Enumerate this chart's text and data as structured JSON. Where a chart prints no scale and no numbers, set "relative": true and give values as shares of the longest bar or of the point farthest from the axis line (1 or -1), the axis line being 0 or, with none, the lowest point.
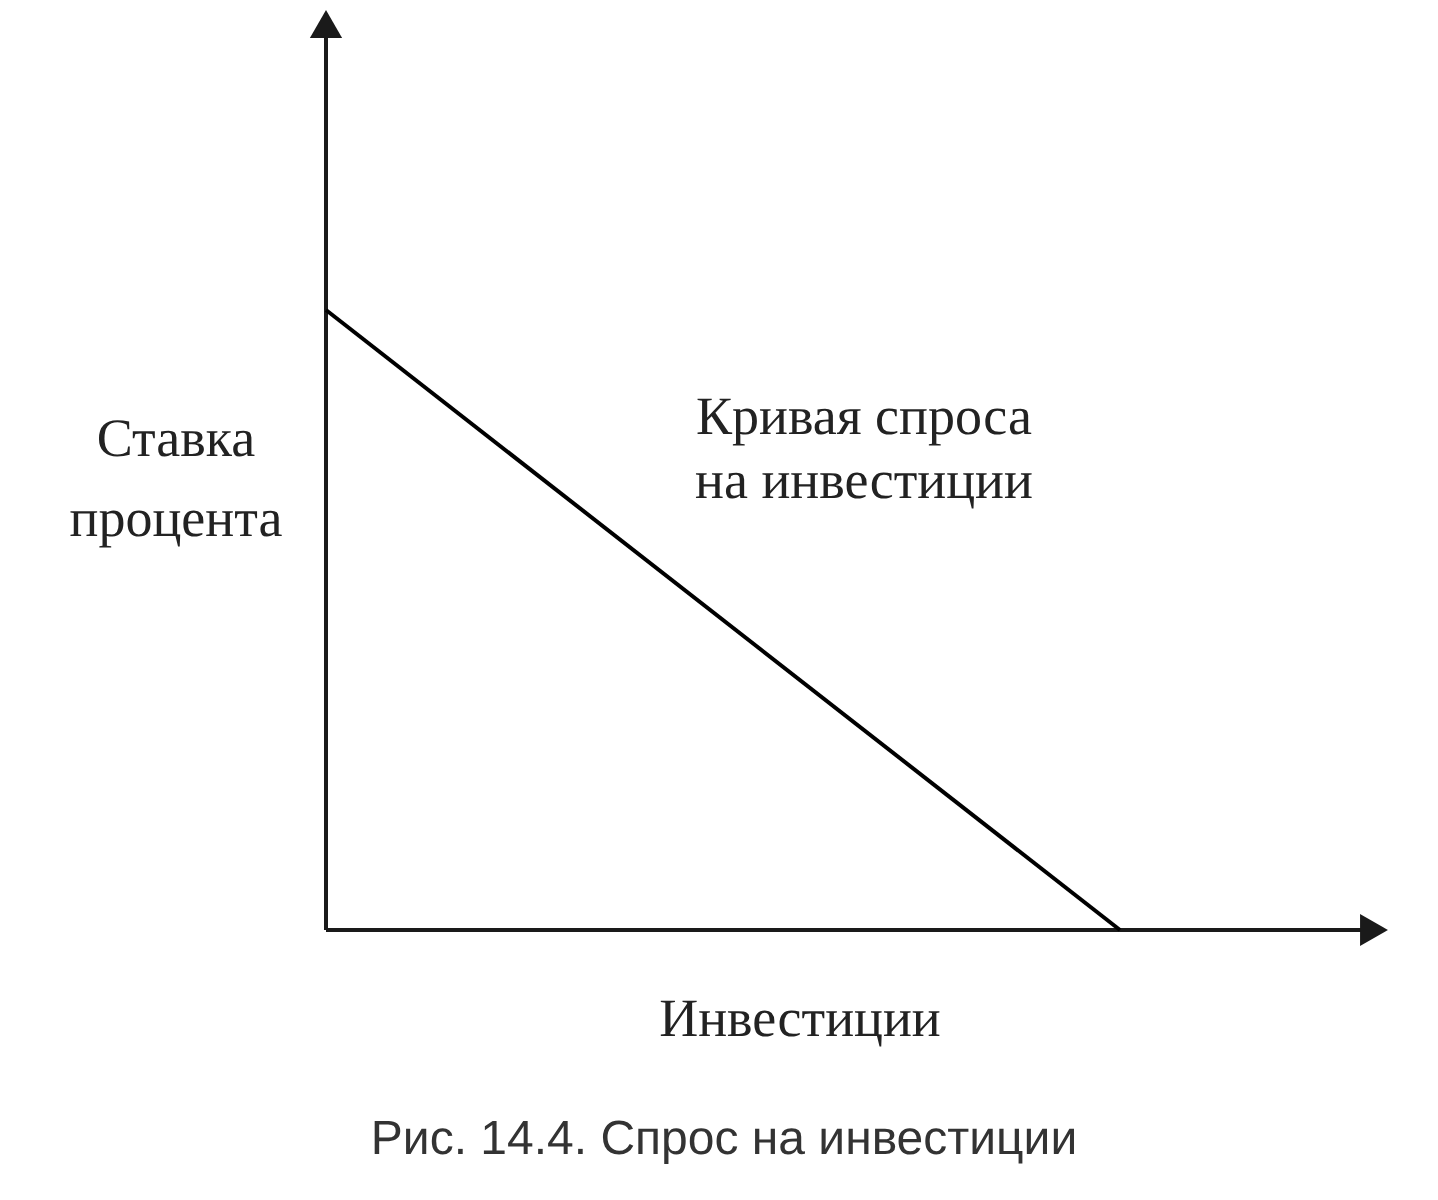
{
  "chart_data": {
    "type": "line",
    "relative": true,
    "categories": [
      null,
      null
    ],
    "values": [
      1,
      0
    ],
    "color": "#000000",
    "title": "Рис. 14.4. Спрос на инвестиции",
    "xlabel": "Инвестиции",
    "ylabel": "Ставка процента",
    "annotations": [
      "Кривая спроса на инвестиции"
    ]
  }
}
